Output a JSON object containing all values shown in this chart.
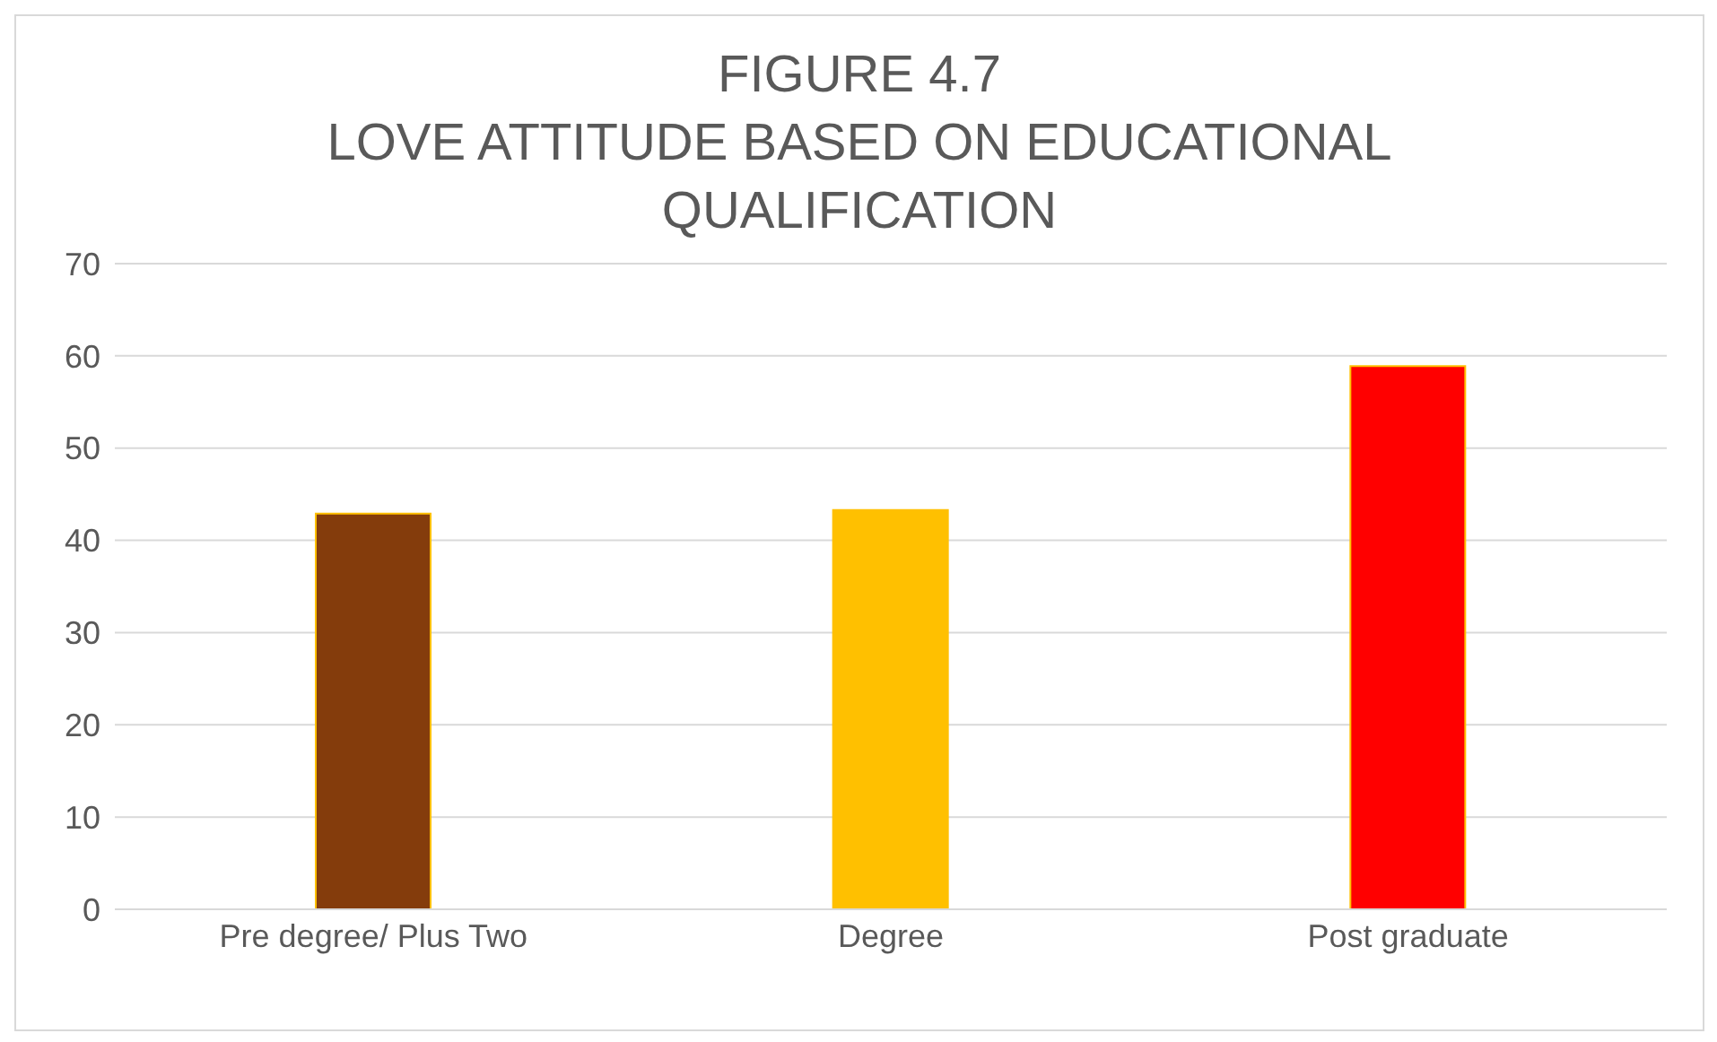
{
  "chart_data": {
    "type": "bar",
    "title": "FIGURE 4.7\nLOVE ATTITUDE BASED ON EDUCATIONAL\nQUALIFICATION",
    "categories": [
      "Pre degree/ Plus Two",
      "Degree",
      "Post graduate"
    ],
    "values": [
      42.9,
      43.3,
      58.9
    ],
    "colors": [
      "#843c0c",
      "#ffc000",
      "#ff0000"
    ],
    "ylim": [
      0,
      70
    ],
    "yticks": [
      0,
      10,
      20,
      30,
      40,
      50,
      60,
      70
    ],
    "grid": "y"
  }
}
